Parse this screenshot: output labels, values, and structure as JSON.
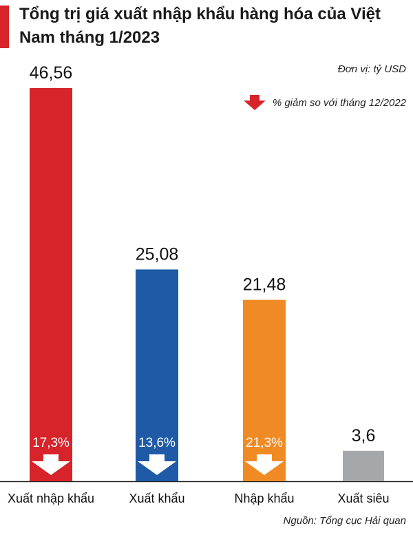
{
  "chart_data": {
    "type": "bar",
    "title": "Tổng trị giá xuất nhập khẩu hàng hóa của Việt Nam tháng 1/2023",
    "unit": "Đơn vị: tỷ USD",
    "legend_label": "% giảm so với tháng 12/2022",
    "categories": [
      "Xuất nhập khẩu",
      "Xuất khẩu",
      "Nhập khẩu",
      "Xuất siêu"
    ],
    "values": [
      46.56,
      25.08,
      21.48,
      3.6
    ],
    "value_labels": [
      "46,56",
      "25,08",
      "21,48",
      "3,6"
    ],
    "decrease_percent": [
      17.3,
      13.6,
      21.3,
      null
    ],
    "decrease_labels": [
      "17,3%",
      "13,6%",
      "21,3%",
      ""
    ],
    "colors": [
      "#d7232a",
      "#1f5aa6",
      "#f08a24",
      "#a6a7aa"
    ],
    "ylim": [
      0,
      46.56
    ],
    "source": "Nguồn: Tổng cục Hải quan"
  }
}
